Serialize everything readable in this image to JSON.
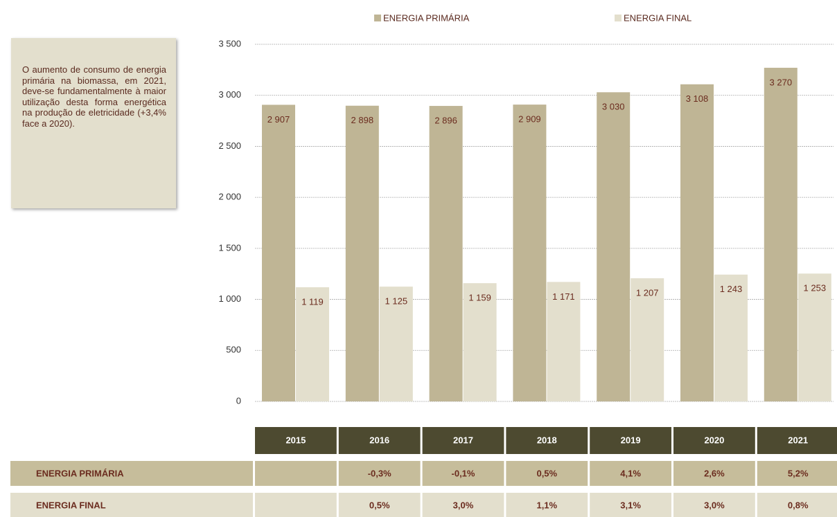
{
  "chart_data": {
    "type": "bar",
    "categories": [
      "2015",
      "2016",
      "2017",
      "2018",
      "2019",
      "2020",
      "2021"
    ],
    "series": [
      {
        "name": "ENERGIA PRIMÁRIA",
        "color": "#bfb595",
        "values": [
          2907,
          2898,
          2896,
          2909,
          3030,
          3108,
          3270
        ],
        "value_labels": [
          "2 907",
          "2 898",
          "2 896",
          "2 909",
          "3 030",
          "3 108",
          "3 270"
        ]
      },
      {
        "name": "ENERGIA FINAL",
        "color": "#e3dfcd",
        "values": [
          1119,
          1125,
          1159,
          1171,
          1207,
          1243,
          1253
        ],
        "value_labels": [
          "1 119",
          "1 125",
          "1 159",
          "1 171",
          "1 207",
          "1 243",
          "1 253"
        ]
      }
    ],
    "ylim": [
      0,
      3500
    ],
    "yticks": [
      0,
      500,
      {
        "value": 1000,
        "label": "1 000"
      },
      {
        "value": 1500,
        "label": "1 500"
      },
      {
        "value": 2000,
        "label": "2 000"
      },
      {
        "value": 2500,
        "label": "2 500"
      },
      {
        "value": 3000,
        "label": "3 000"
      },
      {
        "value": 3500,
        "label": "3 500"
      }
    ],
    "grid": true,
    "legend": "top"
  },
  "note": "O aumento de consumo de energia primária na biomassa, em 2021, deve-se fundamentalmente à maior utilização desta forma energética na produção de eletricidade (+3,4% face a 2020).",
  "table": {
    "header": [
      "2015",
      "2016",
      "2017",
      "2018",
      "2019",
      "2020",
      "2021"
    ],
    "rows": [
      {
        "name": "ENERGIA PRIMÁRIA",
        "cells": [
          null,
          "-0,3%",
          "-0,1%",
          "0,5%",
          "4,1%",
          "2,6%",
          "5,2%"
        ]
      },
      {
        "name": "ENERGIA FINAL",
        "cells": [
          null,
          "0,5%",
          "3,0%",
          "1,1%",
          "3,1%",
          "3,0%",
          "0,8%"
        ]
      }
    ]
  }
}
